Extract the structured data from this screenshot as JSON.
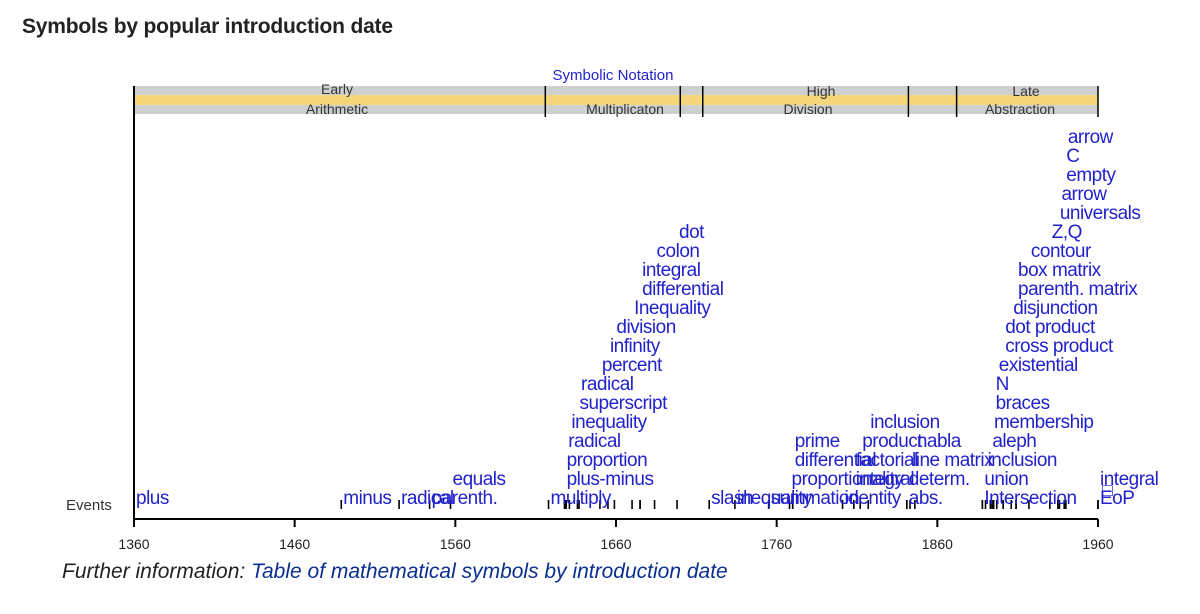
{
  "page": {
    "heading": "Symbols by popular introduction date",
    "further_prefix": "Further information: ",
    "further_link": "Table of mathematical symbols by introduction date"
  },
  "colors": {
    "symbol_text": "#2222cc",
    "band_grey": "#cfcfcf",
    "band_yellow": "#f5d67a",
    "axis": "#000000",
    "link": "#0b2f8f"
  },
  "chart_data": {
    "type": "timeline",
    "x_range": [
      1360,
      1960
    ],
    "x_ticks": [
      1360,
      1460,
      1560,
      1660,
      1760,
      1860,
      1960
    ],
    "row_label": "Events",
    "periods": [
      {
        "label": "Early Arithmetic",
        "start": 1360,
        "end": 1616
      },
      {
        "label": "Symbolic Notation",
        "start": 1616,
        "end": 1700
      },
      {
        "label": "Multiplicaton",
        "start": 1616,
        "end": 1700
      },
      {
        "label": "High Division",
        "start": 1714,
        "end": 1842
      },
      {
        "label": "Late Abstraction",
        "start": 1872,
        "end": 1960
      }
    ],
    "period_marks": [
      1616,
      1700,
      1714,
      1842,
      1872,
      1960
    ],
    "events": [
      {
        "label": "plus",
        "year": 1360
      },
      {
        "label": "minus",
        "year": 1489
      },
      {
        "label": "radical",
        "year": 1525
      },
      {
        "label": "parenth.",
        "year": 1544
      },
      {
        "label": "equals",
        "year": 1557
      },
      {
        "label": "multiply",
        "year": 1618
      },
      {
        "label": "plus-minus",
        "year": 1628
      },
      {
        "label": "proportion",
        "year": 1628
      },
      {
        "label": "radical",
        "year": 1629
      },
      {
        "label": "inequality",
        "year": 1631
      },
      {
        "label": "superscript",
        "year": 1636
      },
      {
        "label": "radical",
        "year": 1637
      },
      {
        "label": "percent",
        "year": 1650
      },
      {
        "label": "infinity",
        "year": 1655
      },
      {
        "label": "division",
        "year": 1659
      },
      {
        "label": "Inequality",
        "year": 1670
      },
      {
        "label": "differential",
        "year": 1675
      },
      {
        "label": "integral",
        "year": 1675
      },
      {
        "label": "colon",
        "year": 1684
      },
      {
        "label": "dot",
        "year": 1698
      },
      {
        "label": "slash",
        "year": 1718
      },
      {
        "label": "inequality",
        "year": 1734
      },
      {
        "label": "summation",
        "year": 1755
      },
      {
        "label": "proportionality",
        "year": 1768
      },
      {
        "label": "differential",
        "year": 1770
      },
      {
        "label": "prime",
        "year": 1770
      },
      {
        "label": "identity",
        "year": 1801
      },
      {
        "label": "integral",
        "year": 1808
      },
      {
        "label": "factorial",
        "year": 1808
      },
      {
        "label": "product",
        "year": 1812
      },
      {
        "label": "inclusion",
        "year": 1817
      },
      {
        "label": "abs.",
        "year": 1841
      },
      {
        "label": "determ.",
        "year": 1841
      },
      {
        "label": "line matrix",
        "year": 1843
      },
      {
        "label": "nabla",
        "year": 1846
      },
      {
        "label": "Intersection",
        "year": 1888
      },
      {
        "label": "union",
        "year": 1888
      },
      {
        "label": "inclusion",
        "year": 1890
      },
      {
        "label": "aleph",
        "year": 1893
      },
      {
        "label": "membership",
        "year": 1894
      },
      {
        "label": "braces",
        "year": 1895
      },
      {
        "label": "N",
        "year": 1895
      },
      {
        "label": "existential",
        "year": 1897
      },
      {
        "label": "cross product",
        "year": 1901
      },
      {
        "label": "dot product",
        "year": 1901
      },
      {
        "label": "disjunction",
        "year": 1906
      },
      {
        "label": "parenth. matrix",
        "year": 1909
      },
      {
        "label": "box matrix",
        "year": 1909
      },
      {
        "label": "contour",
        "year": 1917
      },
      {
        "label": "Z,Q",
        "year": 1930
      },
      {
        "label": "universals",
        "year": 1935
      },
      {
        "label": "arrow",
        "year": 1936
      },
      {
        "label": "empty",
        "year": 1939
      },
      {
        "label": "C",
        "year": 1939
      },
      {
        "label": "arrow",
        "year": 1940
      },
      {
        "label": "EoP",
        "year": 1960
      },
      {
        "label": "integral",
        "year": 1960
      }
    ],
    "undrawn_label": "□"
  }
}
